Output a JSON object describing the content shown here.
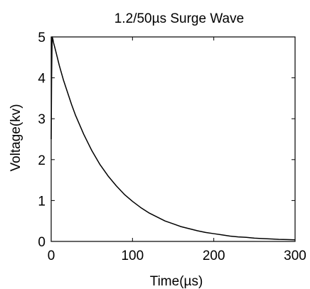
{
  "chart_data": {
    "type": "line",
    "title": "1.2/50µs Surge Wave",
    "xlabel": "Time(µs)",
    "ylabel": "Voltage(kv)",
    "xlim": [
      0,
      300
    ],
    "ylim": [
      0,
      5
    ],
    "x_ticks": [
      "0",
      "100",
      "200",
      "300"
    ],
    "y_ticks": [
      "0",
      "1",
      "2",
      "3",
      "4",
      "5"
    ],
    "grid": false,
    "legend": "none",
    "line_color": "#000000",
    "series": [
      {
        "x": [
          0,
          0.5,
          1,
          1.2,
          2,
          3,
          5,
          10,
          15,
          20,
          25,
          30,
          40,
          50,
          60,
          70,
          80,
          90,
          100,
          110,
          120,
          130,
          140,
          150,
          160,
          170,
          180,
          190,
          200,
          210,
          220,
          230,
          240,
          250,
          260,
          270,
          280,
          290,
          300
        ],
        "y": [
          2.5,
          4.0,
          4.8,
          5.0,
          4.95,
          4.85,
          4.7,
          4.3,
          3.95,
          3.65,
          3.35,
          3.08,
          2.62,
          2.22,
          1.88,
          1.6,
          1.36,
          1.15,
          0.98,
          0.83,
          0.7,
          0.6,
          0.5,
          0.43,
          0.36,
          0.31,
          0.26,
          0.22,
          0.19,
          0.16,
          0.13,
          0.11,
          0.1,
          0.08,
          0.07,
          0.06,
          0.05,
          0.045,
          0.04
        ]
      }
    ]
  }
}
